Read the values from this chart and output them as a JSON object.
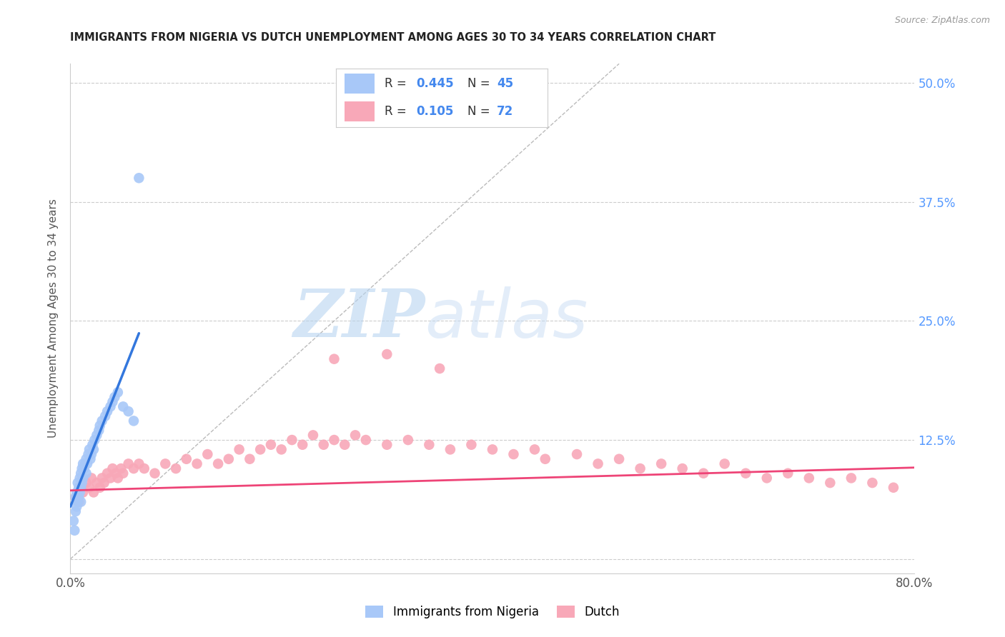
{
  "title": "IMMIGRANTS FROM NIGERIA VS DUTCH UNEMPLOYMENT AMONG AGES 30 TO 34 YEARS CORRELATION CHART",
  "source": "Source: ZipAtlas.com",
  "ylabel": "Unemployment Among Ages 30 to 34 years",
  "xlim": [
    0.0,
    0.8
  ],
  "ylim": [
    -0.015,
    0.52
  ],
  "yticks": [
    0.0,
    0.125,
    0.25,
    0.375,
    0.5
  ],
  "ytick_labels": [
    "",
    "12.5%",
    "25.0%",
    "37.5%",
    "50.0%"
  ],
  "xticks": [
    0.0,
    0.8
  ],
  "xtick_labels": [
    "0.0%",
    "80.0%"
  ],
  "color_nigeria": "#a8c8f8",
  "color_dutch": "#f8a8b8",
  "color_nigeria_line": "#3377dd",
  "color_dutch_line": "#ee4477",
  "color_diagonal": "#bbbbbb",
  "watermark_ZIP": "ZIP",
  "watermark_atlas": "atlas",
  "nigeria_x": [
    0.003,
    0.004,
    0.005,
    0.005,
    0.006,
    0.006,
    0.007,
    0.007,
    0.008,
    0.008,
    0.009,
    0.009,
    0.01,
    0.01,
    0.01,
    0.011,
    0.011,
    0.012,
    0.012,
    0.013,
    0.014,
    0.015,
    0.015,
    0.016,
    0.017,
    0.018,
    0.019,
    0.02,
    0.021,
    0.022,
    0.023,
    0.025,
    0.027,
    0.028,
    0.03,
    0.033,
    0.035,
    0.038,
    0.04,
    0.042,
    0.045,
    0.05,
    0.055,
    0.06,
    0.065
  ],
  "nigeria_y": [
    0.04,
    0.03,
    0.05,
    0.065,
    0.055,
    0.07,
    0.06,
    0.08,
    0.065,
    0.075,
    0.07,
    0.085,
    0.06,
    0.075,
    0.09,
    0.08,
    0.095,
    0.085,
    0.1,
    0.095,
    0.1,
    0.09,
    0.105,
    0.1,
    0.11,
    0.115,
    0.105,
    0.11,
    0.12,
    0.115,
    0.125,
    0.13,
    0.135,
    0.14,
    0.145,
    0.15,
    0.155,
    0.16,
    0.165,
    0.17,
    0.175,
    0.16,
    0.155,
    0.145,
    0.4
  ],
  "nigeria_outlier_x": [
    0.022
  ],
  "nigeria_outlier_y": [
    0.4
  ],
  "nigeria_line_x": [
    0.0,
    0.065
  ],
  "nigeria_line_slope": 2.8,
  "nigeria_line_intercept": 0.055,
  "dutch_x": [
    0.005,
    0.008,
    0.01,
    0.012,
    0.015,
    0.018,
    0.02,
    0.022,
    0.025,
    0.028,
    0.03,
    0.032,
    0.035,
    0.038,
    0.04,
    0.043,
    0.045,
    0.048,
    0.05,
    0.055,
    0.06,
    0.065,
    0.07,
    0.08,
    0.09,
    0.1,
    0.11,
    0.12,
    0.13,
    0.14,
    0.15,
    0.16,
    0.17,
    0.18,
    0.19,
    0.2,
    0.21,
    0.22,
    0.23,
    0.24,
    0.25,
    0.26,
    0.27,
    0.28,
    0.3,
    0.32,
    0.34,
    0.36,
    0.38,
    0.4,
    0.42,
    0.44,
    0.45,
    0.48,
    0.5,
    0.52,
    0.54,
    0.56,
    0.58,
    0.6,
    0.62,
    0.64,
    0.66,
    0.68,
    0.7,
    0.72,
    0.74,
    0.76,
    0.78,
    0.25,
    0.3,
    0.35
  ],
  "dutch_y": [
    0.065,
    0.06,
    0.075,
    0.07,
    0.08,
    0.075,
    0.085,
    0.07,
    0.08,
    0.075,
    0.085,
    0.08,
    0.09,
    0.085,
    0.095,
    0.09,
    0.085,
    0.095,
    0.09,
    0.1,
    0.095,
    0.1,
    0.095,
    0.09,
    0.1,
    0.095,
    0.105,
    0.1,
    0.11,
    0.1,
    0.105,
    0.115,
    0.105,
    0.115,
    0.12,
    0.115,
    0.125,
    0.12,
    0.13,
    0.12,
    0.125,
    0.12,
    0.13,
    0.125,
    0.12,
    0.125,
    0.12,
    0.115,
    0.12,
    0.115,
    0.11,
    0.115,
    0.105,
    0.11,
    0.1,
    0.105,
    0.095,
    0.1,
    0.095,
    0.09,
    0.1,
    0.09,
    0.085,
    0.09,
    0.085,
    0.08,
    0.085,
    0.08,
    0.075,
    0.21,
    0.215,
    0.2
  ],
  "dutch_line_x": [
    0.0,
    0.8
  ],
  "dutch_line_slope": 0.03,
  "dutch_line_intercept": 0.072
}
